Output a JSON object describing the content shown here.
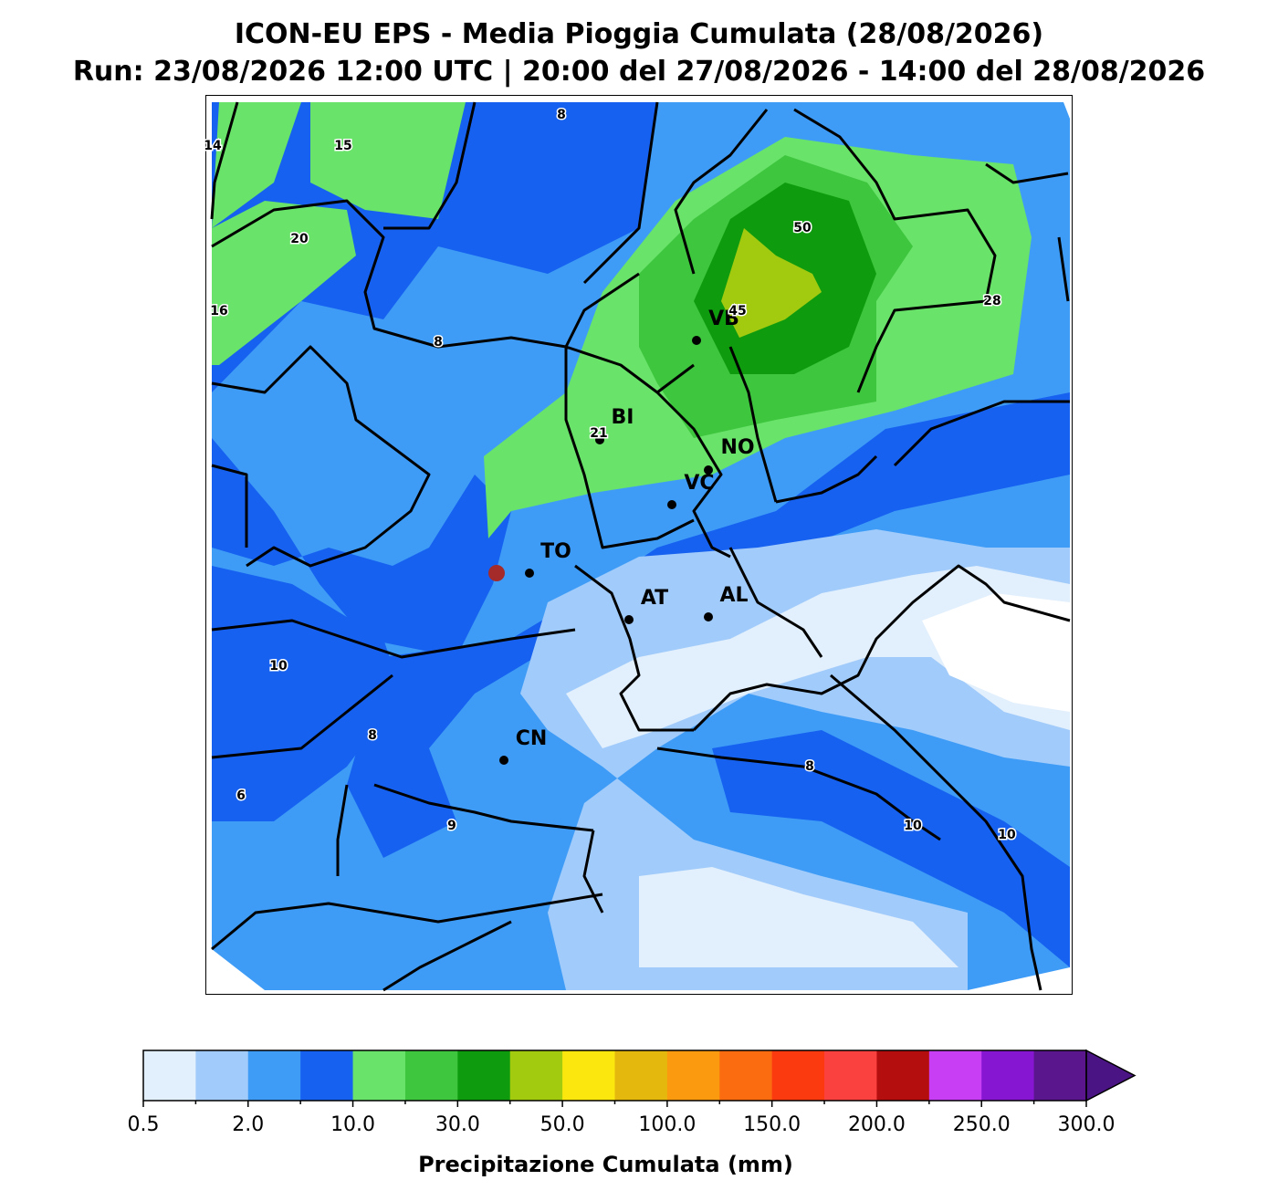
{
  "header": {
    "title": "ICON-EU EPS - Media Pioggia Cumulata (28/08/2026)",
    "subtitle": "Run: 23/08/2026 12:00 UTC | 20:00 del 27/08/2026 - 14:00 del 28/08/2026"
  },
  "map": {
    "cities": [
      "VB",
      "BI",
      "NO",
      "VC",
      "TO",
      "AT",
      "AL",
      "CN"
    ],
    "contour_labels": [
      "8",
      "14",
      "15",
      "20",
      "50",
      "28",
      "16",
      "45",
      "8",
      "21",
      "10",
      "8",
      "6",
      "8",
      "9",
      "10",
      "10"
    ]
  },
  "colorbar": {
    "colors": [
      "#e2effc",
      "#a1cbfa",
      "#3e9cf7",
      "#1661f0",
      "#6ae36a",
      "#3ec63e",
      "#0e9c0e",
      "#a2cb10",
      "#fbe70e",
      "#e5b80e",
      "#fb9a0e",
      "#fb6c10",
      "#fb3a10",
      "#fb4040",
      "#b40e0e",
      "#c83ef5",
      "#8616d2",
      "#5a168c"
    ],
    "extend_color": "#4b1484",
    "ticks": [
      "0.5",
      "2.0",
      "10.0",
      "30.0",
      "50.0",
      "100.0",
      "150.0",
      "200.0",
      "250.0",
      "300.0"
    ],
    "label": "Precipitazione Cumulata (mm)"
  }
}
